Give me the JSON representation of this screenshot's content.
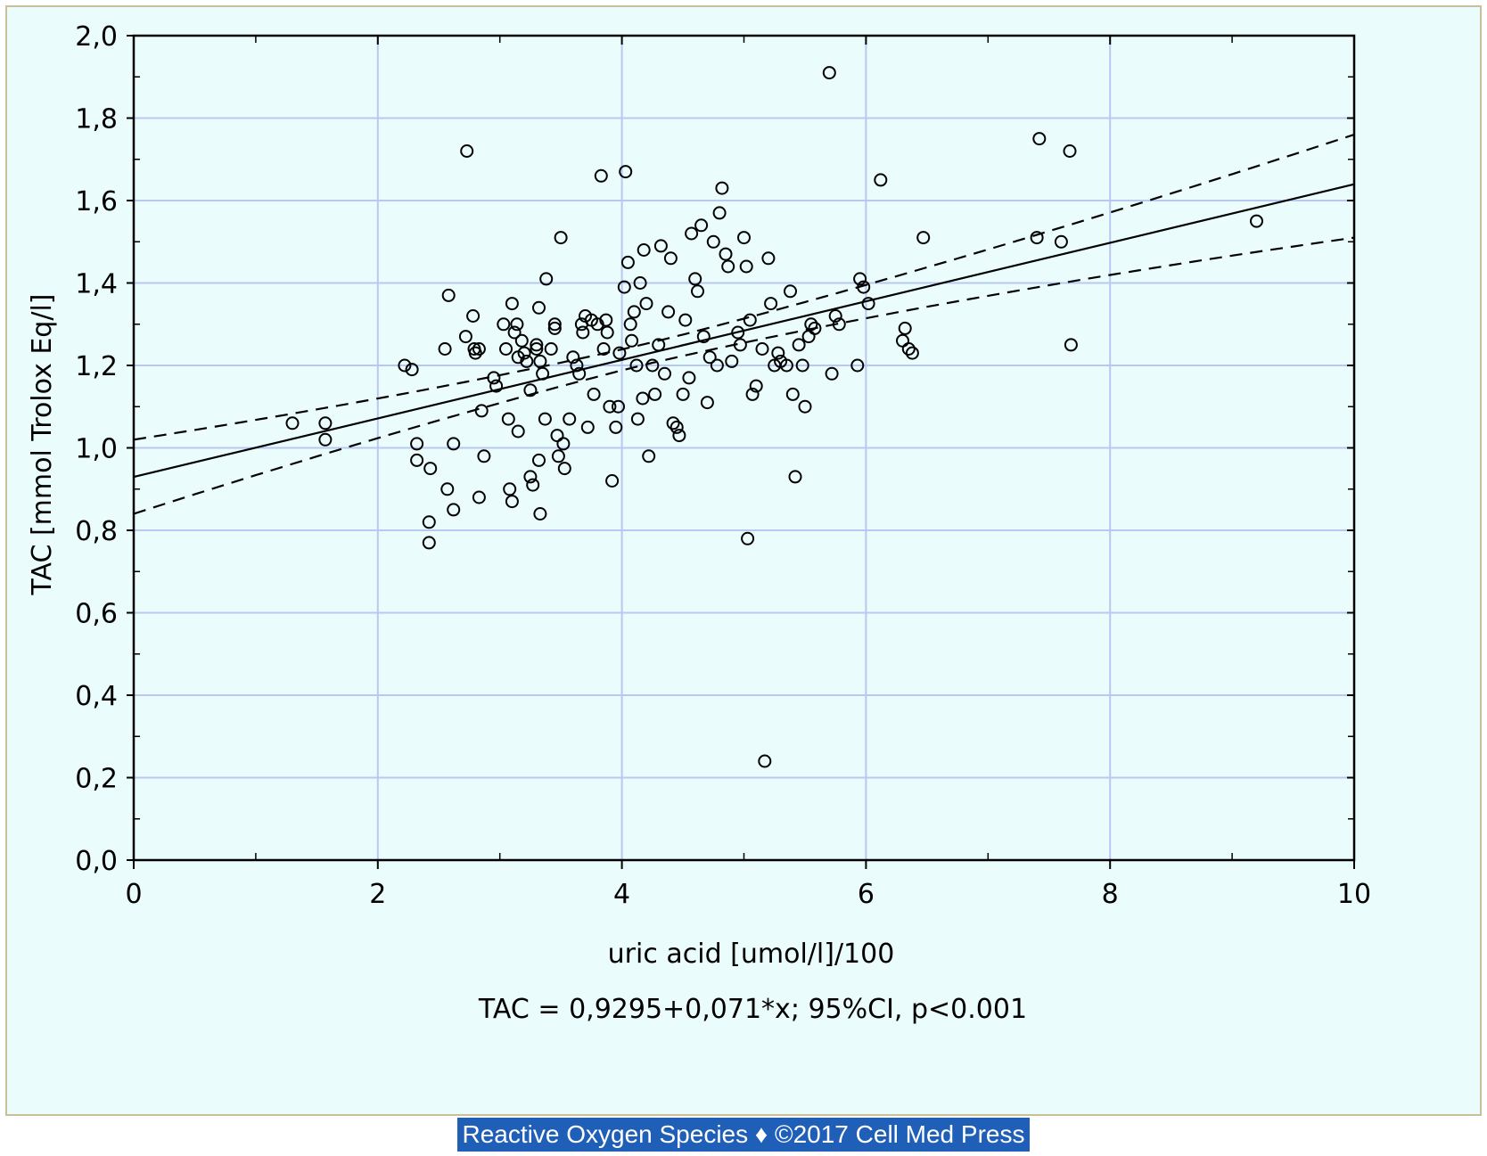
{
  "chart_data": {
    "type": "scatter",
    "title": "",
    "xlabel": "uric acid [umol/l]/100",
    "ylabel": "TAC [mmol Trolox Eq/l]",
    "equation": "TAC = 0,9295+0,071*x; 95%CI, p<0.001",
    "xlim": [
      0,
      10
    ],
    "ylim": [
      0,
      2
    ],
    "x_ticks": [
      0,
      2,
      4,
      6,
      8,
      10
    ],
    "x_tick_labels": [
      "0",
      "2",
      "4",
      "6",
      "8",
      "10"
    ],
    "y_ticks": [
      0,
      0.2,
      0.4,
      0.6,
      0.8,
      1.0,
      1.2,
      1.4,
      1.6,
      1.8,
      2.0
    ],
    "y_tick_labels": [
      "0,0",
      "0,2",
      "0,4",
      "0,6",
      "0,8",
      "1,0",
      "1,2",
      "1,4",
      "1,6",
      "1,8",
      "2,0"
    ],
    "grid": true,
    "regression": {
      "intercept": 0.9295,
      "slope": 0.071,
      "ci_lower_at": [
        [
          0,
          0.84
        ],
        [
          10,
          1.51
        ]
      ],
      "ci_upper_at": [
        [
          0,
          1.02
        ],
        [
          10,
          1.76
        ]
      ]
    },
    "points": [
      [
        1.3,
        1.06
      ],
      [
        1.57,
        1.06
      ],
      [
        1.57,
        1.02
      ],
      [
        2.22,
        1.2
      ],
      [
        2.28,
        1.19
      ],
      [
        2.32,
        1.01
      ],
      [
        2.32,
        0.97
      ],
      [
        2.43,
        0.95
      ],
      [
        2.42,
        0.82
      ],
      [
        2.42,
        0.77
      ],
      [
        2.55,
        1.24
      ],
      [
        2.58,
        1.37
      ],
      [
        2.57,
        0.9
      ],
      [
        2.62,
        1.01
      ],
      [
        2.62,
        0.85
      ],
      [
        2.72,
        1.27
      ],
      [
        2.73,
        1.72
      ],
      [
        2.78,
        1.32
      ],
      [
        2.79,
        1.24
      ],
      [
        2.8,
        1.23
      ],
      [
        2.83,
        1.24
      ],
      [
        2.85,
        1.09
      ],
      [
        2.87,
        0.98
      ],
      [
        2.83,
        0.88
      ],
      [
        2.95,
        1.17
      ],
      [
        2.97,
        1.15
      ],
      [
        3.03,
        1.3
      ],
      [
        3.05,
        1.24
      ],
      [
        3.07,
        1.07
      ],
      [
        3.08,
        0.9
      ],
      [
        3.1,
        0.87
      ],
      [
        3.1,
        1.35
      ],
      [
        3.12,
        1.28
      ],
      [
        3.14,
        1.3
      ],
      [
        3.15,
        1.22
      ],
      [
        3.15,
        1.04
      ],
      [
        3.18,
        1.26
      ],
      [
        3.2,
        1.23
      ],
      [
        3.22,
        1.21
      ],
      [
        3.25,
        1.14
      ],
      [
        3.25,
        0.93
      ],
      [
        3.27,
        0.91
      ],
      [
        3.3,
        1.25
      ],
      [
        3.3,
        1.24
      ],
      [
        3.32,
        1.34
      ],
      [
        3.33,
        1.21
      ],
      [
        3.35,
        1.18
      ],
      [
        3.32,
        0.97
      ],
      [
        3.33,
        0.84
      ],
      [
        3.37,
        1.07
      ],
      [
        3.38,
        1.41
      ],
      [
        3.42,
        1.24
      ],
      [
        3.45,
        1.3
      ],
      [
        3.45,
        1.29
      ],
      [
        3.47,
        1.03
      ],
      [
        3.48,
        0.98
      ],
      [
        3.5,
        1.51
      ],
      [
        3.52,
        1.01
      ],
      [
        3.53,
        0.95
      ],
      [
        3.57,
        1.07
      ],
      [
        3.6,
        1.22
      ],
      [
        3.63,
        1.2
      ],
      [
        3.65,
        1.18
      ],
      [
        3.67,
        1.3
      ],
      [
        3.68,
        1.28
      ],
      [
        3.7,
        1.32
      ],
      [
        3.72,
        1.05
      ],
      [
        3.75,
        1.31
      ],
      [
        3.77,
        1.13
      ],
      [
        3.8,
        1.3
      ],
      [
        3.83,
        1.66
      ],
      [
        3.85,
        1.24
      ],
      [
        3.87,
        1.31
      ],
      [
        3.88,
        1.28
      ],
      [
        3.9,
        1.1
      ],
      [
        3.92,
        0.92
      ],
      [
        3.95,
        1.05
      ],
      [
        3.97,
        1.1
      ],
      [
        3.98,
        1.23
      ],
      [
        4.02,
        1.39
      ],
      [
        4.03,
        1.67
      ],
      [
        4.05,
        1.45
      ],
      [
        4.07,
        1.3
      ],
      [
        4.08,
        1.26
      ],
      [
        4.1,
        1.33
      ],
      [
        4.12,
        1.2
      ],
      [
        4.13,
        1.07
      ],
      [
        4.15,
        1.4
      ],
      [
        4.17,
        1.12
      ],
      [
        4.18,
        1.48
      ],
      [
        4.2,
        1.35
      ],
      [
        4.22,
        0.98
      ],
      [
        4.25,
        1.2
      ],
      [
        4.27,
        1.13
      ],
      [
        4.3,
        1.25
      ],
      [
        4.32,
        1.49
      ],
      [
        4.35,
        1.18
      ],
      [
        4.38,
        1.33
      ],
      [
        4.4,
        1.46
      ],
      [
        4.42,
        1.06
      ],
      [
        4.45,
        1.05
      ],
      [
        4.47,
        1.03
      ],
      [
        4.5,
        1.13
      ],
      [
        4.52,
        1.31
      ],
      [
        4.55,
        1.17
      ],
      [
        4.57,
        1.52
      ],
      [
        4.6,
        1.41
      ],
      [
        4.62,
        1.38
      ],
      [
        4.65,
        1.54
      ],
      [
        4.67,
        1.27
      ],
      [
        4.7,
        1.11
      ],
      [
        4.72,
        1.22
      ],
      [
        4.75,
        1.5
      ],
      [
        4.78,
        1.2
      ],
      [
        4.8,
        1.57
      ],
      [
        4.82,
        1.63
      ],
      [
        4.85,
        1.47
      ],
      [
        4.87,
        1.44
      ],
      [
        4.9,
        1.21
      ],
      [
        4.95,
        1.28
      ],
      [
        4.97,
        1.25
      ],
      [
        5.0,
        1.51
      ],
      [
        5.02,
        1.44
      ],
      [
        5.03,
        0.78
      ],
      [
        5.05,
        1.31
      ],
      [
        5.07,
        1.13
      ],
      [
        5.1,
        1.15
      ],
      [
        5.15,
        1.24
      ],
      [
        5.17,
        0.24
      ],
      [
        5.2,
        1.46
      ],
      [
        5.22,
        1.35
      ],
      [
        5.25,
        1.2
      ],
      [
        5.28,
        1.23
      ],
      [
        5.3,
        1.21
      ],
      [
        5.35,
        1.2
      ],
      [
        5.38,
        1.38
      ],
      [
        5.4,
        1.13
      ],
      [
        5.42,
        0.93
      ],
      [
        5.45,
        1.25
      ],
      [
        5.48,
        1.2
      ],
      [
        5.5,
        1.1
      ],
      [
        5.53,
        1.27
      ],
      [
        5.55,
        1.3
      ],
      [
        5.58,
        1.29
      ],
      [
        5.7,
        1.91
      ],
      [
        5.72,
        1.18
      ],
      [
        5.75,
        1.32
      ],
      [
        5.78,
        1.3
      ],
      [
        5.93,
        1.2
      ],
      [
        5.95,
        1.41
      ],
      [
        5.98,
        1.39
      ],
      [
        6.02,
        1.35
      ],
      [
        6.12,
        1.65
      ],
      [
        6.3,
        1.26
      ],
      [
        6.32,
        1.29
      ],
      [
        6.35,
        1.24
      ],
      [
        6.38,
        1.23
      ],
      [
        6.47,
        1.51
      ],
      [
        7.42,
        1.75
      ],
      [
        7.4,
        1.51
      ],
      [
        7.6,
        1.5
      ],
      [
        7.67,
        1.72
      ],
      [
        7.68,
        1.25
      ],
      [
        9.2,
        1.55
      ]
    ]
  },
  "credit": {
    "text": "Reactive Oxygen Species ♦ ©2017 Cell Med Press"
  }
}
